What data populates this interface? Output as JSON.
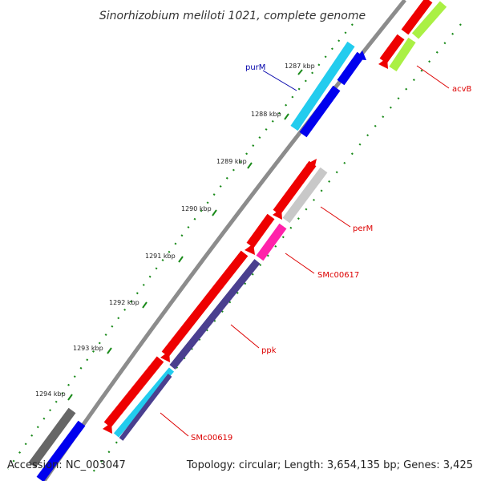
{
  "title": "Sinorhizobium meliloti 1021, complete genome",
  "ticks": [
    "1287 kbp",
    "1288 kbp",
    "1289 kbp",
    "1290 kbp",
    "1291 kbp",
    "1292 kbp",
    "1293 kbp",
    "1294 kbp"
  ],
  "genes": [
    {
      "name": "purM",
      "color": "#0000aa"
    },
    {
      "name": "acvB",
      "color": "#dd0000"
    },
    {
      "name": "perM",
      "color": "#dd0000"
    },
    {
      "name": "SMc00617",
      "color": "#dd0000"
    },
    {
      "name": "ppk",
      "color": "#dd0000"
    },
    {
      "name": "SMc00619",
      "color": "#dd0000"
    }
  ],
  "feature_colors": {
    "cds_forward": "#ee0000",
    "cds_reverse": "#ee0000",
    "orf_blue": "#0000ee",
    "orf_cyan": "#22ccee",
    "orf_lime": "#aaf044",
    "orf_grey": "#c8c8c8",
    "orf_pink": "#ff22aa",
    "orf_slate": "#4a3f8f",
    "orf_dark_grey": "#666666",
    "backbone": "#8c8c8c",
    "gc_skew": "#1a8a1a"
  },
  "footer": {
    "accession": "Accession: NC_003047",
    "summary": "Topology: circular; Length: 3,654,135 bp; Genes: 3,425"
  }
}
